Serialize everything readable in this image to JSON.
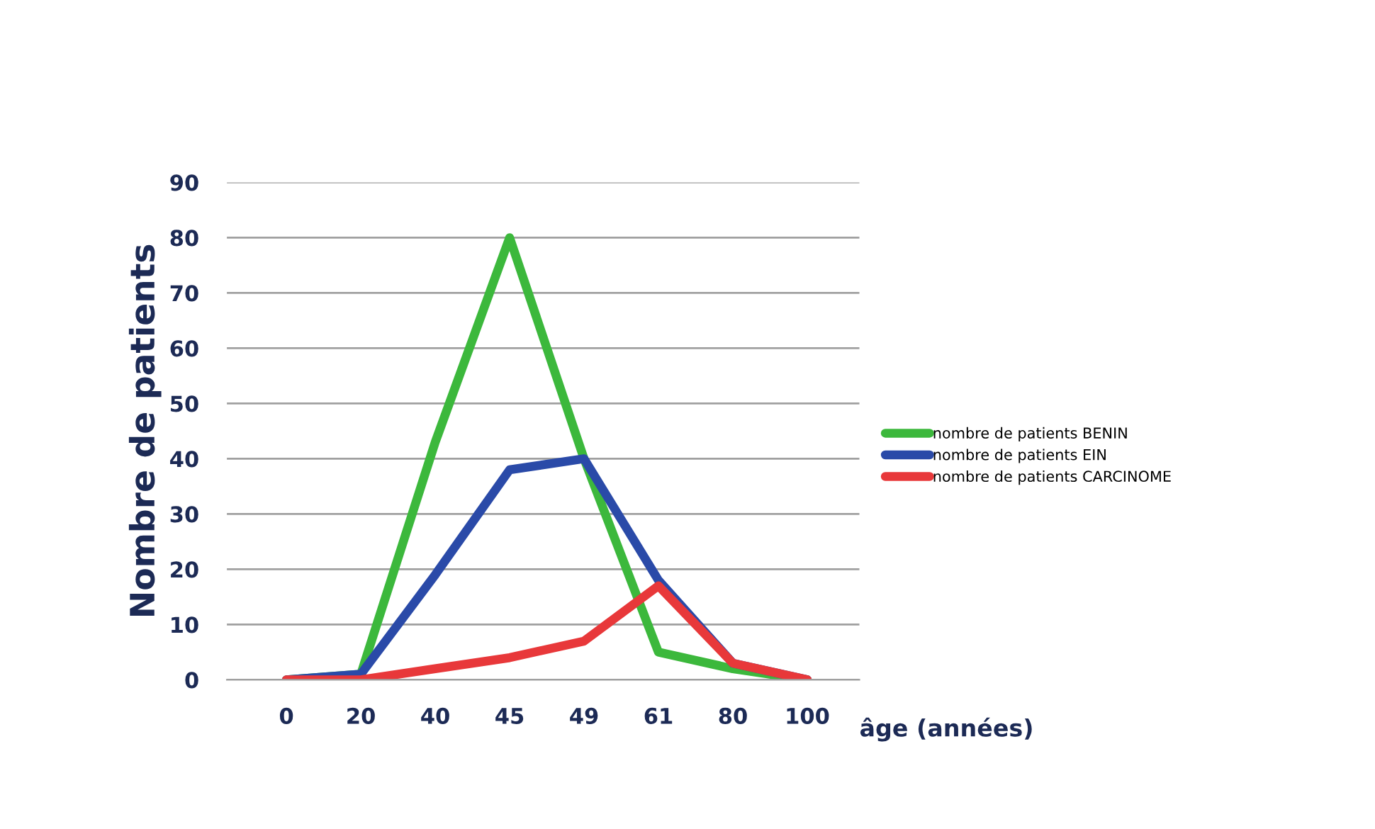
{
  "chart_data": {
    "type": "line",
    "xlabel": "âge (années)",
    "ylabel": "Nombre de patients",
    "categories": [
      "0",
      "20",
      "40",
      "45",
      "49",
      "61",
      "80",
      "100"
    ],
    "series": [
      {
        "name": "nombre de patients BENIN",
        "color": "#3cb83c",
        "values": [
          0,
          1,
          43,
          80,
          40,
          5,
          2,
          0
        ]
      },
      {
        "name": "nombre de patients EIN",
        "color": "#2a4aa8",
        "values": [
          0,
          1,
          19,
          38,
          40,
          18,
          3,
          0
        ]
      },
      {
        "name": "nombre de patients CARCINOME",
        "color": "#e8383a",
        "values": [
          0,
          0,
          2,
          4,
          7,
          17,
          3,
          0
        ]
      }
    ],
    "ylim": [
      0,
      90
    ],
    "yticks": [
      0,
      10,
      20,
      30,
      40,
      50,
      60,
      70,
      80,
      90
    ],
    "grid": "y",
    "legend": "right",
    "marker": "none",
    "line_style": "solid"
  }
}
